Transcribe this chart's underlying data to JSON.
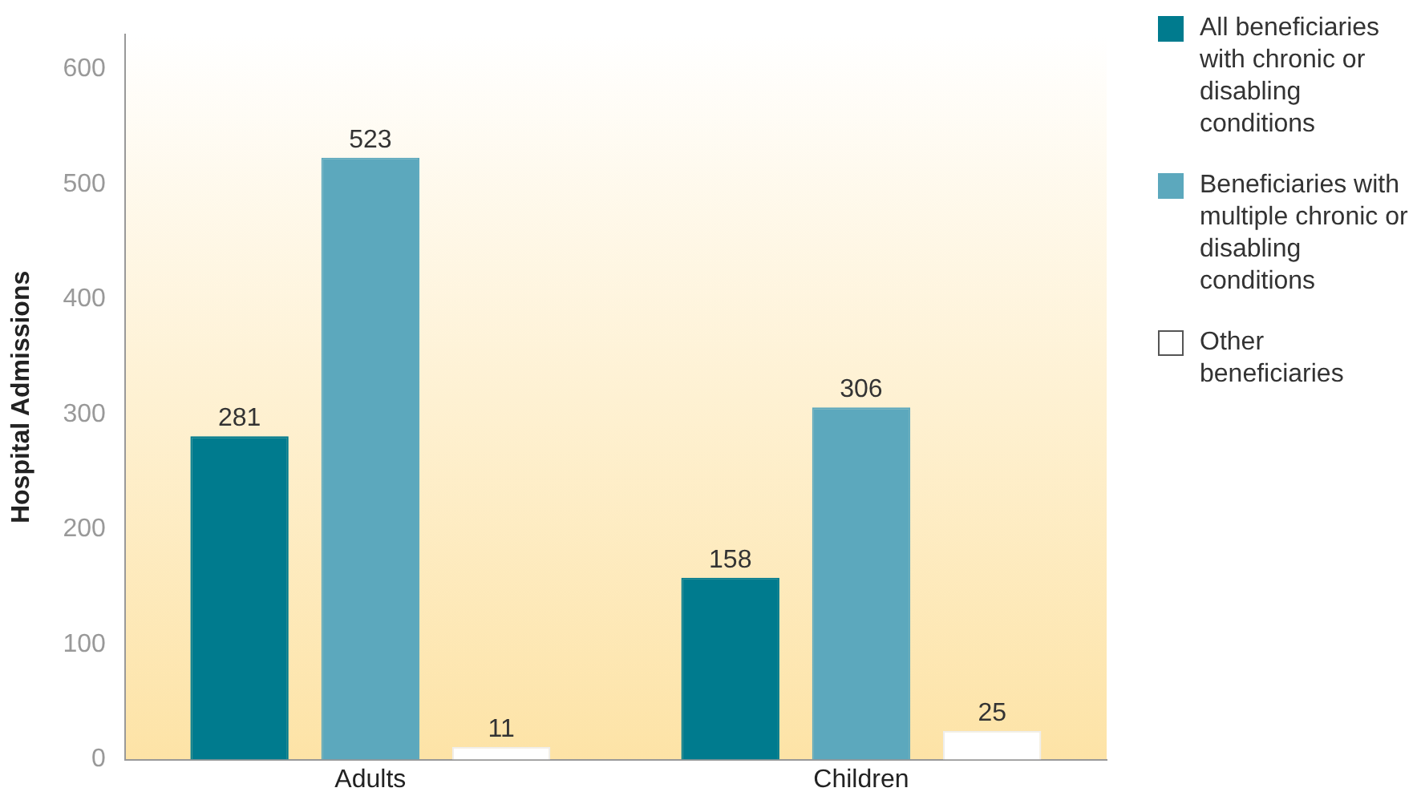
{
  "chart_data": {
    "type": "bar",
    "ylabel": "Hospital Admissions",
    "categories": [
      "Adults",
      "Children"
    ],
    "series": [
      {
        "name": "All beneficiaries with chronic or disabling conditions",
        "color": "#007b8e",
        "values": [
          281,
          158
        ]
      },
      {
        "name": "Beneficiaries with multiple chronic or disabling conditions",
        "color": "#5ca8bd",
        "values": [
          523,
          306
        ]
      },
      {
        "name": "Other beneficiaries",
        "color": "#ffffff",
        "values": [
          11,
          25
        ]
      }
    ],
    "ylim": [
      0,
      630
    ],
    "yticks": [
      0,
      100,
      200,
      300,
      400,
      500,
      600
    ],
    "grid": false,
    "data_labels": true,
    "legend": "top right"
  }
}
